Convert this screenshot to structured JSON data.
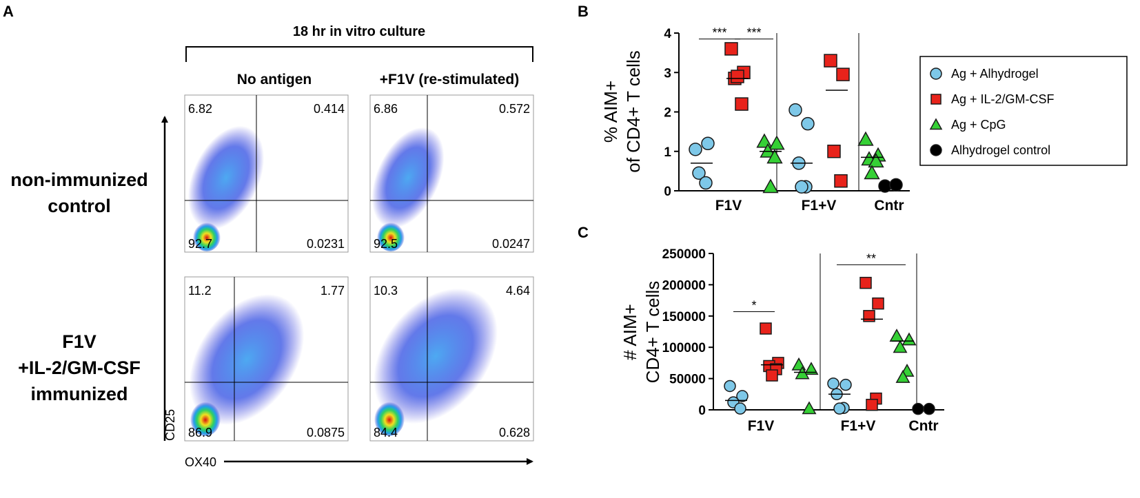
{
  "panel_labels": {
    "a": "A",
    "b": "B",
    "c": "C"
  },
  "flow": {
    "culture_label": "18 hr in vitro culture",
    "col_headers": [
      "No antigen",
      "+F1V (re-stimulated)"
    ],
    "row_labels": [
      [
        "non-immunized",
        "control"
      ],
      [
        "F1V",
        "+IL-2/GM-CSF",
        "immunized"
      ]
    ],
    "y_axis_label": "CD25",
    "x_axis_label": "OX40",
    "quadrants": [
      [
        "6.82",
        "0.414",
        "92.7",
        "0.0231"
      ],
      [
        "6.86",
        "0.572",
        "92.5",
        "0.0247"
      ],
      [
        "11.2",
        "1.77",
        "86.9",
        "0.0875"
      ],
      [
        "10.3",
        "4.64",
        "84.4",
        "0.628"
      ]
    ]
  },
  "legend": {
    "items": [
      {
        "label": "Ag + Alhydrogel",
        "shape": "circle",
        "color": "#7ec8e8"
      },
      {
        "label": "Ag + IL-2/GM-CSF",
        "shape": "square",
        "color": "#e8231b"
      },
      {
        "label": "Ag + CpG",
        "shape": "triangle",
        "color": "#35d035"
      },
      {
        "label": "Alhydrogel control",
        "shape": "circle",
        "color": "#000000"
      }
    ]
  },
  "colors": {
    "stroke": "#1a1a1a",
    "axis": "#000000"
  },
  "chart_data": [
    {
      "panel": "B",
      "type": "scatter",
      "title": "",
      "ylabel": [
        "% AIM+",
        "of CD4+ T cells"
      ],
      "ylim": [
        0,
        4
      ],
      "yticks": [
        "0",
        "1",
        "2",
        "3",
        "4"
      ],
      "groups": [
        "F1V",
        "F1+V",
        "Cntr"
      ],
      "series": [
        {
          "name": "Ag + Alhydrogel",
          "group": "F1V",
          "values": [
            1.05,
            1.2,
            0.45,
            0.2
          ],
          "mean": 0.7
        },
        {
          "name": "Ag + IL-2/GM-CSF",
          "group": "F1V",
          "values": [
            3.6,
            3.0,
            2.85,
            2.2,
            2.9
          ],
          "mean": 2.85
        },
        {
          "name": "Ag + CpG",
          "group": "F1V",
          "values": [
            1.25,
            1.2,
            1.0,
            0.85,
            0.1
          ],
          "mean": 1.0
        },
        {
          "name": "Ag + Alhydrogel",
          "group": "F1+V",
          "values": [
            2.05,
            1.7,
            0.7,
            0.1,
            0.1
          ],
          "mean": 0.7
        },
        {
          "name": "Ag + IL-2/GM-CSF",
          "group": "F1+V",
          "values": [
            3.3,
            2.95,
            1.0,
            0.25
          ],
          "mean": 2.55
        },
        {
          "name": "Ag + CpG",
          "group": "F1+V",
          "values": [
            1.3,
            0.9,
            0.8,
            0.75,
            0.45
          ],
          "mean": 0.85
        },
        {
          "name": "Alhydrogel control",
          "group": "Cntr",
          "values": [
            0.12,
            0.15
          ],
          "mean": null
        }
      ],
      "significance": [
        {
          "label": "***",
          "between": [
            "Ag + Alhydrogel",
            "Ag + IL-2/GM-CSF"
          ],
          "group": "F1V",
          "y": 3.85
        },
        {
          "label": "***",
          "between": [
            "Ag + IL-2/GM-CSF",
            "Ag + CpG"
          ],
          "group": "F1V",
          "y": 3.85
        }
      ]
    },
    {
      "panel": "C",
      "type": "scatter",
      "title": "",
      "ylabel": [
        "# AIM+",
        "CD4+ T cells"
      ],
      "ylim": [
        0,
        250000
      ],
      "yticks": [
        "0",
        "50000",
        "100000",
        "150000",
        "200000",
        "250000"
      ],
      "groups": [
        "F1V",
        "F1+V",
        "Cntr"
      ],
      "series": [
        {
          "name": "Ag + Alhydrogel",
          "group": "F1V",
          "values": [
            38000,
            22000,
            12000,
            2000
          ],
          "mean": 15000
        },
        {
          "name": "Ag + IL-2/GM-CSF",
          "group": "F1V",
          "values": [
            130000,
            75000,
            70000,
            65000,
            55000
          ],
          "mean": 72000
        },
        {
          "name": "Ag + CpG",
          "group": "F1V",
          "values": [
            72000,
            65000,
            58000,
            2000
          ],
          "mean": 60000
        },
        {
          "name": "Ag + Alhydrogel",
          "group": "F1+V",
          "values": [
            42000,
            40000,
            25000,
            3000,
            2000
          ],
          "mean": 25000
        },
        {
          "name": "Ag + IL-2/GM-CSF",
          "group": "F1+V",
          "values": [
            203000,
            170000,
            150000,
            18000,
            8000
          ],
          "mean": 145000
        },
        {
          "name": "Ag + CpG",
          "group": "F1+V",
          "values": [
            118000,
            112000,
            100000,
            62000,
            52000
          ],
          "mean": 110000
        },
        {
          "name": "Alhydrogel control",
          "group": "Cntr",
          "values": [
            1500,
            1500
          ],
          "mean": null
        }
      ],
      "significance": [
        {
          "label": "*",
          "between": [
            "Ag + Alhydrogel",
            "Ag + IL-2/GM-CSF"
          ],
          "group": "F1V",
          "y": 157000
        },
        {
          "label": "**",
          "between": [
            "Ag + Alhydrogel",
            "Ag + CpG"
          ],
          "group": "F1+V",
          "y": 232000
        }
      ]
    }
  ]
}
